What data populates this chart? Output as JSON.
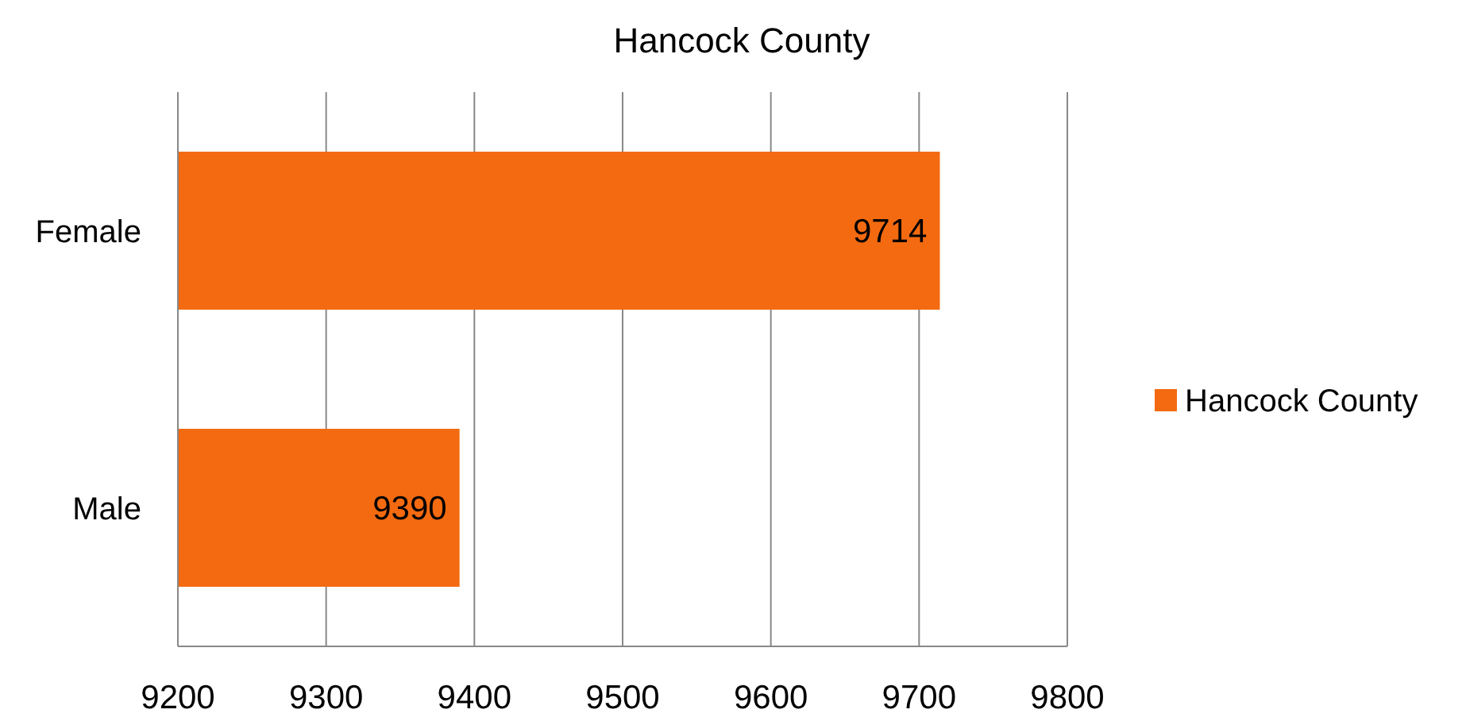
{
  "chart_data": {
    "type": "bar",
    "orientation": "horizontal",
    "title": "Hancock County",
    "categories": [
      "Female",
      "Male"
    ],
    "series": [
      {
        "name": "Hancock County",
        "color": "#f36a10",
        "values": [
          9714,
          9390
        ]
      }
    ],
    "xlim": [
      9200,
      9800
    ],
    "xticks": [
      9200,
      9300,
      9400,
      9500,
      9600,
      9700,
      9800
    ],
    "grid": "x",
    "legend": "right",
    "data_labels": true
  }
}
